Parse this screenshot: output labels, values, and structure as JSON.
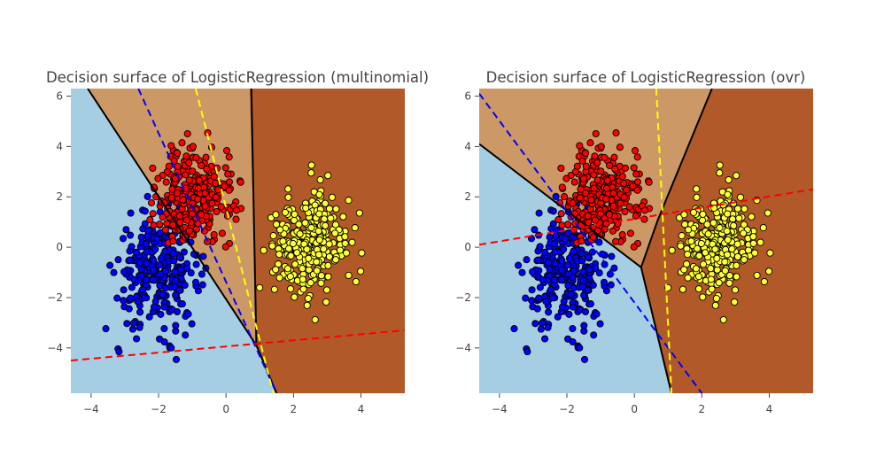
{
  "chart_data": [
    {
      "type": "scatter",
      "title": "Decision surface of LogisticRegression (multinomial)",
      "xlabel": "",
      "ylabel": "",
      "xlim": [
        -4.6,
        5.3
      ],
      "ylim": [
        -5.8,
        6.3
      ],
      "x_ticks": [
        -4,
        -2,
        0,
        2,
        4
      ],
      "y_ticks": [
        -4,
        -2,
        0,
        2,
        4,
        6
      ],
      "x_tick_labels": [
        "−4",
        "−2",
        "0",
        "2",
        "4"
      ],
      "y_tick_labels": [
        "−4",
        "−2",
        "0",
        "2",
        "4",
        "6"
      ],
      "grid": false,
      "legend": "none",
      "colors": {
        "region_blue": "#a6cee3",
        "region_tan": "#cc9966",
        "region_brown": "#b15928",
        "points_blue": "#0000ff",
        "points_red": "#ff0000",
        "points_yellow": "#ffff3a",
        "boundary": "#000000"
      },
      "regions": [
        {
          "class": "blue",
          "polygon": [
            [
              -4.6,
              6.3
            ],
            [
              -4.6,
              -5.8
            ],
            [
              1.5,
              -5.8
            ],
            [
              0.9,
              -3.9
            ],
            [
              -4.1,
              6.3
            ]
          ]
        },
        {
          "class": "tan",
          "polygon": [
            [
              -4.1,
              6.3
            ],
            [
              0.9,
              -3.9
            ],
            [
              0.7,
              6.3
            ]
          ]
        },
        {
          "class": "brown",
          "polygon": [
            [
              0.7,
              6.3
            ],
            [
              0.9,
              -3.9
            ],
            [
              1.5,
              -5.8
            ],
            [
              5.3,
              -5.8
            ],
            [
              5.3,
              6.3
            ]
          ]
        }
      ],
      "boundaries": [
        [
          [
            -4.1,
            6.3
          ],
          [
            0.9,
            -3.9
          ]
        ],
        [
          [
            0.75,
            6.3
          ],
          [
            0.9,
            -3.9
          ]
        ],
        [
          [
            0.9,
            -3.9
          ],
          [
            1.5,
            -5.8
          ]
        ]
      ],
      "hyperplanes": [
        {
          "color": "#0000ff",
          "points": [
            [
              -2.6,
              6.3
            ],
            [
              1.5,
              -5.8
            ]
          ]
        },
        {
          "color": "#ff0000",
          "points": [
            [
              -4.6,
              -4.5
            ],
            [
              5.3,
              -3.3
            ]
          ]
        },
        {
          "color": "#ffff00",
          "points": [
            [
              -0.9,
              6.3
            ],
            [
              1.4,
              -5.8
            ]
          ]
        }
      ],
      "clusters": [
        {
          "name": "blue",
          "center": [
            -2.0,
            -1.0
          ],
          "spread": [
            0.6,
            1.1
          ],
          "count": 300
        },
        {
          "name": "red",
          "center": [
            -0.9,
            2.0
          ],
          "spread": [
            0.55,
            0.95
          ],
          "count": 300
        },
        {
          "name": "yellow",
          "center": [
            2.4,
            0.1
          ],
          "spread": [
            0.55,
            1.05
          ],
          "count": 300
        }
      ]
    },
    {
      "type": "scatter",
      "title": "Decision surface of LogisticRegression (ovr)",
      "xlabel": "",
      "ylabel": "",
      "xlim": [
        -4.6,
        5.3
      ],
      "ylim": [
        -5.8,
        6.3
      ],
      "x_ticks": [
        -4,
        -2,
        0,
        2,
        4
      ],
      "y_ticks": [
        -4,
        -2,
        0,
        2,
        4,
        6
      ],
      "x_tick_labels": [
        "−4",
        "−2",
        "0",
        "2",
        "4"
      ],
      "y_tick_labels": [
        "−4",
        "−2",
        "0",
        "2",
        "4",
        "6"
      ],
      "grid": false,
      "legend": "none",
      "colors": {
        "region_blue": "#a6cee3",
        "region_tan": "#cc9966",
        "region_brown": "#b15928",
        "points_blue": "#0000ff",
        "points_red": "#ff0000",
        "points_yellow": "#ffff3a",
        "boundary": "#000000"
      },
      "regions": [
        {
          "class": "blue",
          "polygon": [
            [
              -4.6,
              6.3
            ],
            [
              -4.6,
              4.1
            ],
            [
              0.2,
              -0.8
            ],
            [
              1.1,
              -5.8
            ],
            [
              -4.6,
              -5.8
            ]
          ]
        },
        {
          "class": "tan",
          "polygon": [
            [
              -4.6,
              6.3
            ],
            [
              -4.6,
              4.1
            ],
            [
              0.2,
              -0.8
            ],
            [
              0.7,
              1.1
            ],
            [
              2.3,
              6.3
            ]
          ]
        },
        {
          "class": "brown",
          "polygon": [
            [
              2.3,
              6.3
            ],
            [
              0.7,
              1.1
            ],
            [
              0.2,
              -0.8
            ],
            [
              1.1,
              -5.8
            ],
            [
              5.3,
              -5.8
            ],
            [
              5.3,
              6.3
            ]
          ]
        }
      ],
      "boundaries": [
        [
          [
            -4.6,
            4.1
          ],
          [
            0.2,
            -0.8
          ]
        ],
        [
          [
            0.2,
            -0.8
          ],
          [
            0.7,
            1.1
          ]
        ],
        [
          [
            0.7,
            1.1
          ],
          [
            2.3,
            6.3
          ]
        ],
        [
          [
            0.2,
            -0.8
          ],
          [
            1.1,
            -5.8
          ]
        ]
      ],
      "hyperplanes": [
        {
          "color": "#0000ff",
          "points": [
            [
              -4.6,
              6.1
            ],
            [
              2.0,
              -5.8
            ]
          ]
        },
        {
          "color": "#ff0000",
          "points": [
            [
              -4.6,
              0.1
            ],
            [
              5.3,
              2.3
            ]
          ]
        },
        {
          "color": "#ffff00",
          "points": [
            [
              0.65,
              6.3
            ],
            [
              1.1,
              -5.8
            ]
          ]
        }
      ],
      "clusters": [
        {
          "name": "blue",
          "center": [
            -2.0,
            -1.0
          ],
          "spread": [
            0.6,
            1.1
          ],
          "count": 300
        },
        {
          "name": "red",
          "center": [
            -0.9,
            2.0
          ],
          "spread": [
            0.55,
            0.95
          ],
          "count": 300
        },
        {
          "name": "yellow",
          "center": [
            2.4,
            0.1
          ],
          "spread": [
            0.55,
            1.05
          ],
          "count": 300
        }
      ]
    }
  ]
}
